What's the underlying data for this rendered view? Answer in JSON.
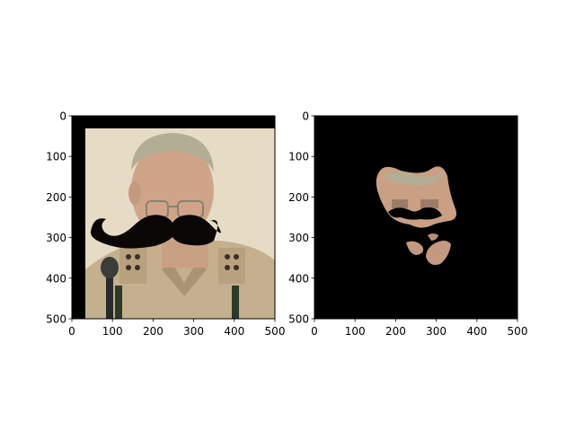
{
  "chart_data": [
    {
      "type": "image",
      "panel": "left",
      "content": "photo-with-mustache-overlay",
      "xlim": [
        0,
        500
      ],
      "ylim": [
        500,
        0
      ],
      "x_ticks": [
        "0",
        "100",
        "200",
        "300",
        "400",
        "500"
      ],
      "y_ticks": [
        "0",
        "100",
        "200",
        "300",
        "400",
        "500"
      ],
      "title": "",
      "xlabel": "",
      "ylabel": ""
    },
    {
      "type": "image",
      "panel": "right",
      "content": "masked-face-on-black",
      "xlim": [
        0,
        500
      ],
      "ylim": [
        500,
        0
      ],
      "x_ticks": [
        "0",
        "100",
        "200",
        "300",
        "400",
        "500"
      ],
      "y_ticks": [
        "0",
        "100",
        "200",
        "300",
        "400",
        "500"
      ],
      "title": "",
      "xlabel": "",
      "ylabel": ""
    }
  ],
  "colors": {
    "frame": "#000000",
    "background_fill": "#e6dcc6",
    "skin": "#c9a084",
    "hair": "#b4ad95",
    "uniform": "#c4b08e",
    "mustache": "#0b0707",
    "mask_bg": "#000000"
  }
}
